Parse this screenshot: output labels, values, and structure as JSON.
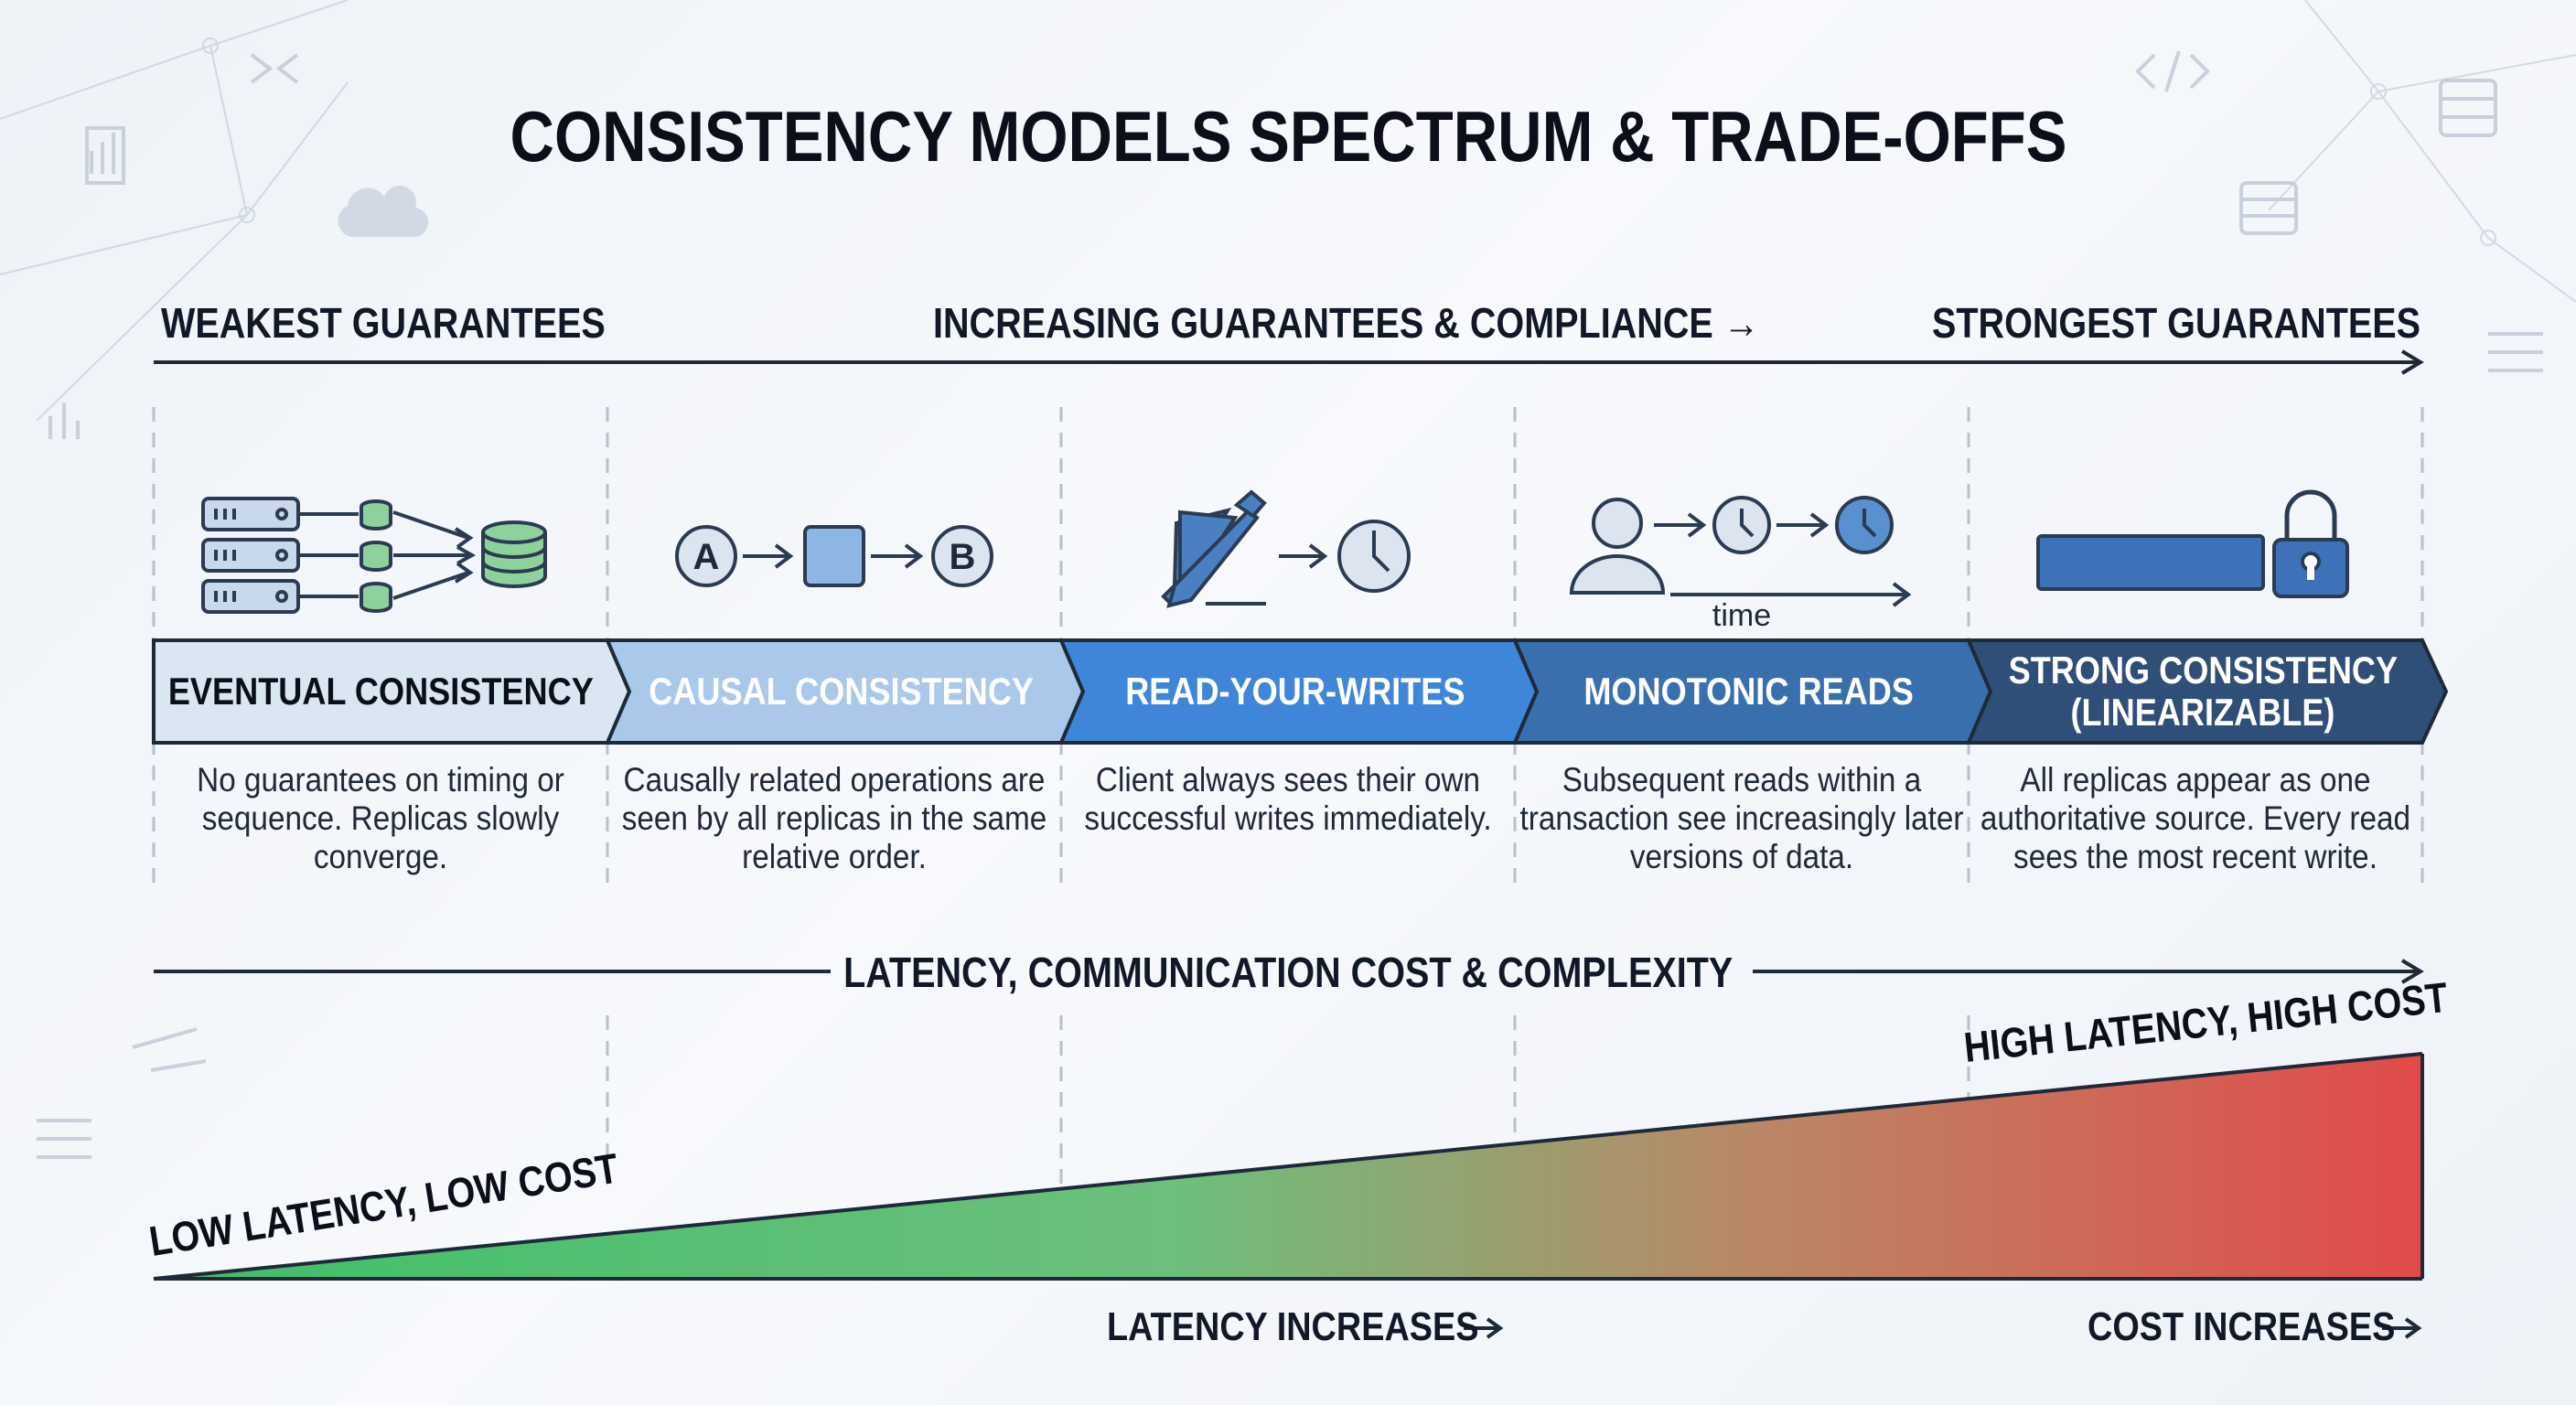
{
  "title": "CONSISTENCY MODELS SPECTRUM & TRADE-OFFS",
  "guarantee_axis": {
    "left": "WEAKEST GUARANTEES",
    "middle": "INCREASING GUARANTEES & COMPLIANCE →",
    "right": "STRONGEST GUARANTEES"
  },
  "models": [
    {
      "name_line1": "EVENTUAL CONSISTENCY",
      "name_line2": "",
      "description": "No guarantees on timing or sequence. Replicas slowly converge.",
      "icon": "replicas-converging-icon",
      "band_color": "#dbe6f3",
      "text_color": "#0b0f19"
    },
    {
      "name_line1": "CAUSAL CONSISTENCY",
      "name_line2": "",
      "description": "Causally related operations are seen by all replicas in the same relative order.",
      "icon": "causal-chain-icon",
      "band_color": "#a9c8ea",
      "text_color": "#ffffff"
    },
    {
      "name_line1": "READ-YOUR-WRITES",
      "name_line2": "",
      "description": "Client always sees their own successful writes immediately.",
      "icon": "pen-clock-icon",
      "band_color": "#3f86d8",
      "text_color": "#ffffff"
    },
    {
      "name_line1": "MONOTONIC READS",
      "name_line2": "",
      "description": "Subsequent reads within a transaction see increasingly later versions of data.",
      "icon": "user-timeline-icon",
      "band_color": "#3a6fae",
      "text_color": "#ffffff"
    },
    {
      "name_line1": "STRONG CONSISTENCY",
      "name_line2": "(LINEARIZABLE)",
      "description": "All replicas appear as one authoritative source. Every read sees the most recent write.",
      "icon": "locked-bar-icon",
      "band_color": "#2f4f78",
      "text_color": "#ffffff"
    }
  ],
  "icon_labels": {
    "causal_a": "A",
    "causal_b": "B",
    "timeline": "time"
  },
  "cost_section": {
    "title": "LATENCY, COMMUNICATION COST & COMPLEXITY",
    "low_label": "LOW LATENCY, LOW COST",
    "high_label": "HIGH LATENCY, HIGH COST",
    "latency_footer": "LATENCY INCREASES →",
    "cost_footer": "COST INCREASES →",
    "gradient_start_color": "#3fbf6a",
    "gradient_end_color": "#e24a4a"
  }
}
